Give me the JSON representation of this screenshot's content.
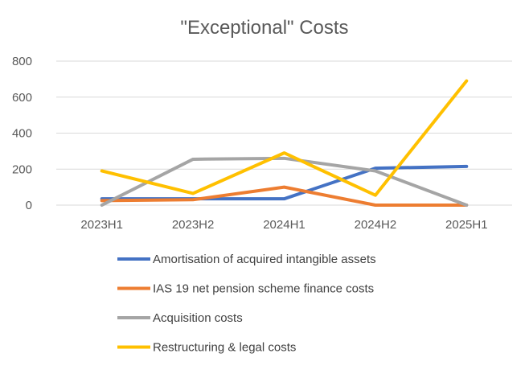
{
  "chart_data": {
    "type": "line",
    "title": "\"Exceptional\" Costs",
    "xlabel": "",
    "ylabel": "",
    "categories": [
      "2023H1",
      "2023H2",
      "2024H1",
      "2024H2",
      "2025H1"
    ],
    "ylim": [
      0,
      800
    ],
    "yticks": [
      0,
      200,
      400,
      600,
      800
    ],
    "grid": true,
    "legend_position": "bottom",
    "series": [
      {
        "name": "Amortisation of acquired intangible assets",
        "color": "#4472C4",
        "values": [
          35,
          35,
          35,
          205,
          215
        ]
      },
      {
        "name": "IAS 19 net pension scheme finance costs",
        "color": "#ED7D31",
        "values": [
          25,
          30,
          100,
          0,
          0
        ]
      },
      {
        "name": "Acquisition costs",
        "color": "#A5A5A5",
        "values": [
          0,
          255,
          260,
          190,
          0
        ]
      },
      {
        "name": "Restructuring & legal costs",
        "color": "#FFC000",
        "values": [
          190,
          65,
          290,
          55,
          690
        ]
      }
    ]
  }
}
